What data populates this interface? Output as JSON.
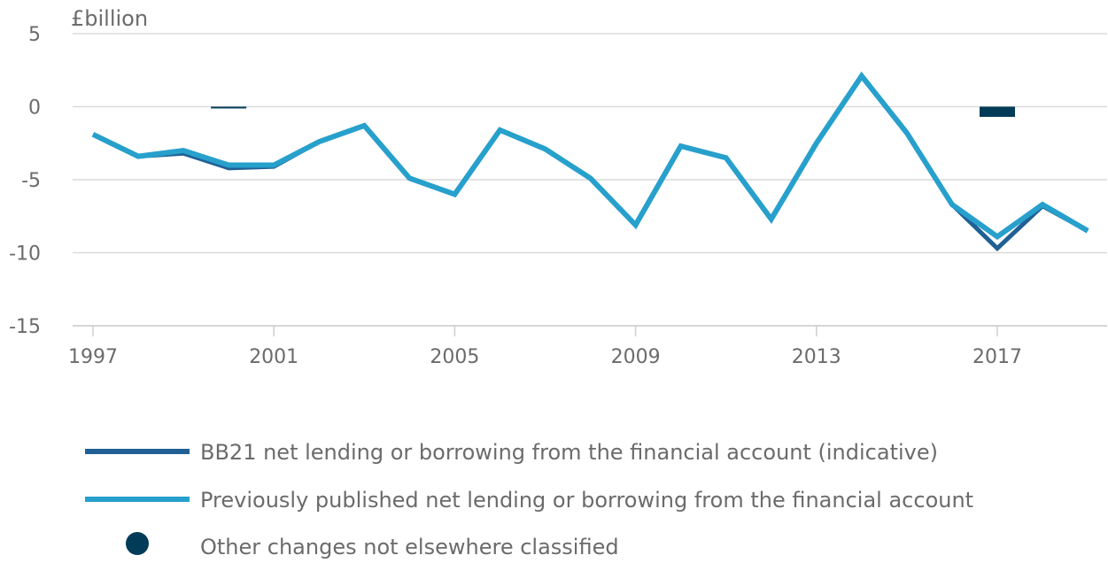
{
  "chart_data": {
    "type": "line",
    "y_unit_label": "£billion",
    "x": [
      1997,
      1998,
      1999,
      2000,
      2001,
      2002,
      2003,
      2004,
      2005,
      2006,
      2007,
      2008,
      2009,
      2010,
      2011,
      2012,
      2013,
      2014,
      2015,
      2016,
      2017,
      2018,
      2019
    ],
    "x_ticks": [
      1997,
      2001,
      2005,
      2009,
      2013,
      2017
    ],
    "x_tick_labels": [
      "1997",
      "2001",
      "2005",
      "2009",
      "2013",
      "2017"
    ],
    "y_ticks": [
      5,
      0,
      -5,
      -10,
      -15
    ],
    "y_tick_labels": [
      "5",
      "0",
      "-5",
      "-10",
      "-15"
    ],
    "ylim": [
      -15,
      5
    ],
    "xlim": [
      1997,
      2019.5
    ],
    "grid": "horizontal",
    "series": [
      {
        "name": "BB21 net lending or borrowing from the financial account (indicative)",
        "color": "#206095",
        "kind": "line",
        "values": [
          -1.9,
          -3.4,
          -3.2,
          -4.2,
          -4.1,
          -2.4,
          -1.3,
          -4.9,
          -6.0,
          -1.6,
          -2.9,
          -4.9,
          -8.1,
          -2.7,
          -3.5,
          -7.7,
          -2.5,
          2.1,
          -1.8,
          -6.7,
          -9.7,
          -6.8,
          -8.5
        ]
      },
      {
        "name": "Previously published net lending or borrowing from the financial account",
        "color": "#27a0cc",
        "kind": "line",
        "values": [
          -1.9,
          -3.4,
          -3.0,
          -4.0,
          -4.0,
          -2.4,
          -1.3,
          -4.9,
          -6.0,
          -1.6,
          -2.9,
          -4.9,
          -8.1,
          -2.7,
          -3.5,
          -7.7,
          -2.5,
          2.1,
          -1.8,
          -6.7,
          -8.9,
          -6.7,
          -8.5
        ]
      },
      {
        "name": "Other changes not elsewhere classified",
        "color": "#003c57",
        "kind": "bar",
        "points": [
          {
            "x": 2000,
            "y": -0.1
          },
          {
            "x": 2017,
            "y": -0.7
          }
        ]
      }
    ],
    "legend_position": "bottom"
  }
}
